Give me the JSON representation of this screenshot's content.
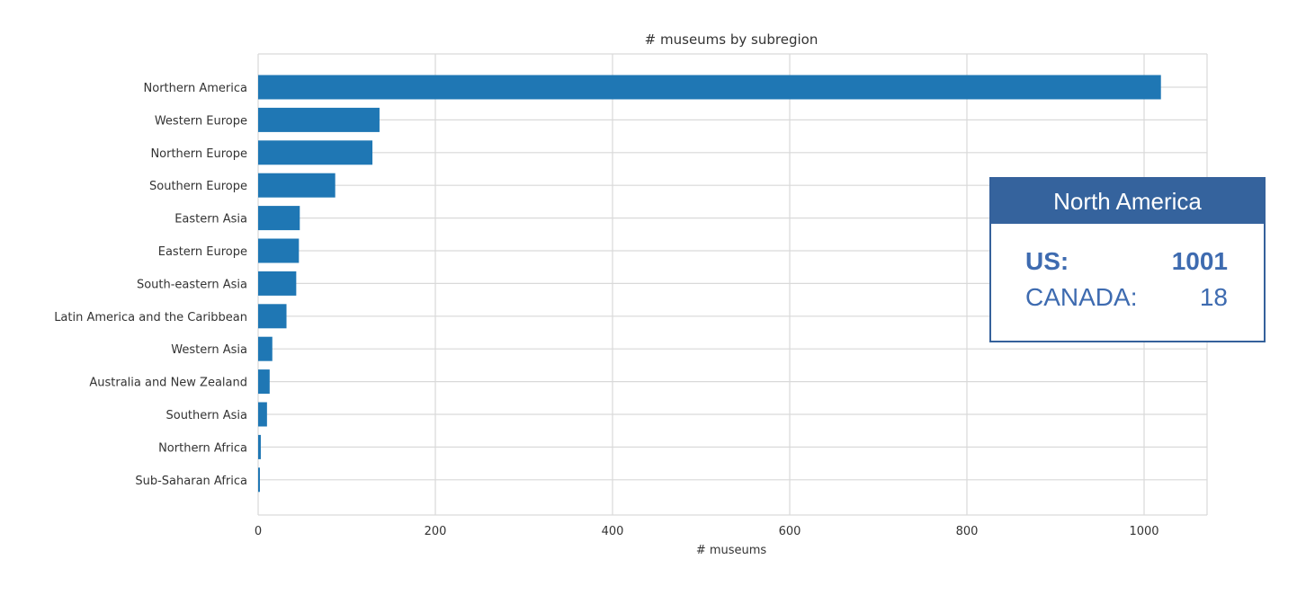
{
  "chart_data": {
    "type": "bar",
    "orientation": "horizontal",
    "title": "# museums by subregion",
    "xlabel": "# museums",
    "ylabel": "",
    "xlim": [
      0,
      1070
    ],
    "xticks": [
      0,
      200,
      400,
      600,
      800,
      1000
    ],
    "grid": true,
    "color": "#1f77b4",
    "categories": [
      "Northern America",
      "Western Europe",
      "Northern Europe",
      "Southern Europe",
      "Eastern Asia",
      "Eastern Europe",
      "South-eastern Asia",
      "Latin America and the Caribbean",
      "Western Asia",
      "Australia and New Zealand",
      "Southern Asia",
      "Northern Africa",
      "Sub-Saharan Africa"
    ],
    "values": [
      1019,
      137,
      129,
      87,
      47,
      46,
      43,
      32,
      16,
      13,
      10,
      3,
      2
    ]
  },
  "callout": {
    "title": "North America",
    "rows": [
      {
        "label": "US:",
        "value": "1001"
      },
      {
        "label": "CANADA:",
        "value": "18"
      }
    ],
    "header_color": "#35639d",
    "text_color": "#3e6bb0"
  }
}
